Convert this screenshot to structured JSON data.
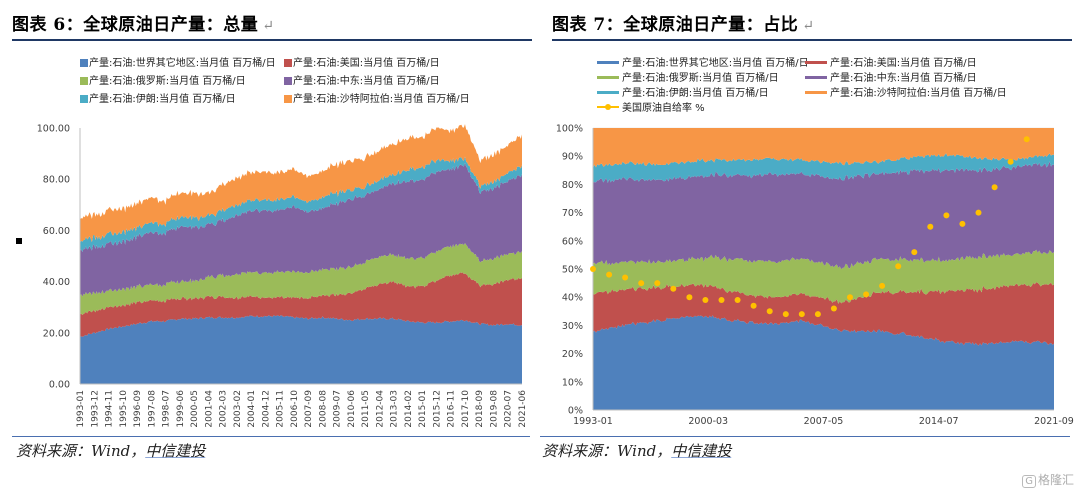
{
  "left": {
    "title": "图表 6：全球原油日产量：总量",
    "source_prefix": "资料来源：Wind，",
    "source_brand": "中信建投"
  },
  "right": {
    "title": "图表 7：全球原油日产量：占比",
    "source_prefix": "资料来源：Wind，",
    "source_brand": "中信建投"
  },
  "return_mark": "↵",
  "watermark": {
    "box": "G",
    "text": "格隆汇"
  },
  "colors": {
    "rest": "#4f81bd",
    "us": "#c0504d",
    "russia": "#9bbb59",
    "middle_east": "#8064a2",
    "iran": "#4bacc6",
    "saudi": "#f79646",
    "self_sufficiency": "#ffc000"
  },
  "chart_data": [
    {
      "type": "area",
      "stacked": true,
      "ylim": [
        0,
        100
      ],
      "yticks": [
        "0.00",
        "20.00",
        "40.00",
        "60.00",
        "80.00",
        "100.00"
      ],
      "xticks": [
        "1993-01",
        "1993-12",
        "1994-11",
        "1995-10",
        "1996-09",
        "1997-08",
        "1998-07",
        "1999-06",
        "2000-05",
        "2001-04",
        "2002-03",
        "2003-02",
        "2004-01",
        "2004-12",
        "2005-11",
        "2006-10",
        "2007-09",
        "2008-08",
        "2009-07",
        "2010-06",
        "2011-05",
        "2012-04",
        "2013-03",
        "2014-02",
        "2015-01",
        "2015-12",
        "2016-11",
        "2017-10",
        "2018-09",
        "2019-08",
        "2020-07",
        "2021-06"
      ],
      "x": [
        "1993",
        "1994",
        "1995",
        "1996",
        "1997",
        "1998",
        "1999",
        "2000",
        "2001",
        "2002",
        "2003",
        "2004",
        "2005",
        "2006",
        "2007",
        "2008",
        "2009",
        "2010",
        "2011",
        "2012",
        "2013",
        "2014",
        "2015",
        "2016",
        "2017",
        "2018",
        "2019",
        "2020-04",
        "2020-05",
        "2020-09",
        "2021",
        "2021-08"
      ],
      "series": [
        {
          "key": "rest",
          "name": "产量:石油:世界其它地区:当月值 百万桶/日",
          "values": [
            18.5,
            20.0,
            21.5,
            22.5,
            23.5,
            24.5,
            24.5,
            25.5,
            25.5,
            26.0,
            26.0,
            26.0,
            26.5,
            26.5,
            26.5,
            26.0,
            25.5,
            26.0,
            25.5,
            25.0,
            25.5,
            25.5,
            25.5,
            24.5,
            24.0,
            24.0,
            24.5,
            25.0,
            23.5,
            23.0,
            23.5,
            23.0
          ]
        },
        {
          "key": "us",
          "name": "产量:石油:美国:当月值 百万桶/日",
          "values": [
            9.0,
            8.5,
            8.5,
            8.3,
            8.3,
            8.1,
            8.0,
            8.0,
            8.0,
            8.0,
            8.0,
            7.7,
            7.6,
            7.3,
            7.5,
            7.6,
            8.0,
            8.5,
            9.3,
            10.5,
            12.0,
            13.5,
            14.5,
            13.5,
            14.0,
            16.5,
            18.0,
            18.5,
            15.0,
            16.0,
            17.5,
            18.5
          ]
        },
        {
          "key": "russia",
          "name": "产量:石油:俄罗斯:当月值 百万桶/日",
          "values": [
            7.5,
            6.9,
            6.5,
            6.4,
            6.2,
            6.2,
            6.3,
            6.6,
            7.0,
            7.6,
            8.4,
            9.2,
            9.5,
            9.7,
            10.0,
            10.0,
            10.0,
            10.1,
            10.3,
            10.4,
            10.5,
            10.6,
            10.7,
            11.0,
            11.0,
            11.3,
            11.4,
            11.5,
            9.6,
            10.0,
            10.2,
            10.5
          ]
        },
        {
          "key": "middle_east",
          "name": "产量:石油:中东:当月值 百万桶/日",
          "values": [
            17.5,
            18.0,
            18.2,
            18.5,
            19.5,
            20.5,
            20.0,
            21.5,
            21.0,
            20.5,
            21.5,
            23.0,
            24.0,
            24.5,
            24.0,
            25.5,
            23.5,
            24.0,
            25.5,
            26.5,
            26.0,
            26.5,
            28.0,
            30.0,
            30.5,
            31.0,
            30.0,
            31.0,
            27.0,
            27.5,
            28.5,
            30.0
          ]
        },
        {
          "key": "iran",
          "name": "产量:石油:伊朗:当月值 百万桶/日",
          "values": [
            3.7,
            3.7,
            3.7,
            3.7,
            3.7,
            3.7,
            3.6,
            3.8,
            3.8,
            3.5,
            3.9,
            4.1,
            4.2,
            4.2,
            4.0,
            4.1,
            4.0,
            4.2,
            4.2,
            3.7,
            3.5,
            3.6,
            3.5,
            4.5,
            4.9,
            4.7,
            3.2,
            2.4,
            2.3,
            2.5,
            3.0,
            3.5
          ]
        },
        {
          "key": "saudi",
          "name": "产量:石油:沙特阿拉伯:当月值 百万桶/日",
          "values": [
            9.0,
            9.0,
            9.2,
            9.3,
            9.5,
            9.7,
            9.0,
            9.5,
            9.5,
            8.8,
            10.0,
            10.5,
            11.0,
            10.8,
            10.5,
            10.8,
            10.0,
            10.2,
            11.0,
            11.5,
            11.3,
            11.5,
            12.0,
            12.3,
            12.0,
            12.5,
            11.8,
            13.0,
            10.0,
            10.5,
            11.0,
            12.0
          ]
        }
      ],
      "xlabel": "",
      "ylabel": "",
      "legend": "top",
      "grid": false
    },
    {
      "type": "area",
      "stacked": true,
      "percent": true,
      "ylim": [
        0,
        100
      ],
      "yticks": [
        "0%",
        "10%",
        "20%",
        "30%",
        "40%",
        "50%",
        "60%",
        "70%",
        "80%",
        "90%",
        "100%"
      ],
      "xticks": [
        "1993-01",
        "2000-03",
        "2007-05",
        "2014-07",
        "2021-09"
      ],
      "series": [
        {
          "key": "rest",
          "name": "产量:石油:世界其它地区:当月值 百万桶/日",
          "values": [
            27.5,
            30.5,
            32.0,
            33.5,
            32.0,
            30.5,
            31.5,
            28.0,
            28.0,
            26.5,
            24.0,
            23.5,
            24.5,
            23.5
          ]
        },
        {
          "key": "us",
          "name": "产量:石油:美国:当月值 百万桶/日",
          "values": [
            13.5,
            12.5,
            11.5,
            11.0,
            10.0,
            9.5,
            9.5,
            10.0,
            13.5,
            15.5,
            18.0,
            19.5,
            20.0,
            21.0
          ]
        },
        {
          "key": "russia",
          "name": "产量:石油:俄罗斯:当月值 百万桶/日",
          "values": [
            11.0,
            9.5,
            9.0,
            9.5,
            12.0,
            12.5,
            12.5,
            12.5,
            12.0,
            11.5,
            11.0,
            11.5,
            11.0,
            11.5
          ]
        },
        {
          "key": "middle_east",
          "name": "产量:石油:中东:当月值 百万桶/日",
          "values": [
            29.0,
            29.5,
            29.0,
            29.0,
            30.0,
            31.0,
            30.0,
            31.5,
            30.0,
            31.5,
            32.0,
            30.5,
            31.0,
            31.0
          ]
        },
        {
          "key": "iran",
          "name": "产量:石油:伊朗:当月值 百万桶/日",
          "values": [
            5.5,
            5.5,
            5.5,
            5.5,
            5.5,
            5.5,
            5.0,
            5.5,
            4.5,
            5.0,
            5.5,
            4.0,
            2.5,
            3.5
          ]
        },
        {
          "key": "saudi",
          "name": "产量:石油:沙特阿拉伯:当月值 百万桶/日",
          "values": [
            13.5,
            12.5,
            13.0,
            11.5,
            11.5,
            11.0,
            11.5,
            12.5,
            12.0,
            10.5,
            9.5,
            11.0,
            11.0,
            9.5
          ]
        }
      ],
      "self_sufficiency": {
        "name": "美国原油自给率 %",
        "x": [
          1993.0,
          1994.0,
          1995.0,
          1996.0,
          1997.0,
          1998.0,
          1999.0,
          2000.0,
          2001.0,
          2002.0,
          2003.0,
          2004.0,
          2005.0,
          2006.0,
          2007.0,
          2008.0,
          2009.0,
          2010.0,
          2011.0,
          2012.0,
          2013.0,
          2014.0,
          2015.0,
          2016.0,
          2017.0,
          2018.0,
          2019.0,
          2020.0,
          2021.0
        ],
        "values": [
          50,
          48,
          47,
          45,
          45,
          43,
          40,
          39,
          39,
          39,
          37,
          35,
          34,
          34,
          34,
          36,
          40,
          41,
          44,
          51,
          56,
          65,
          69,
          66,
          70,
          79,
          88,
          96,
          null
        ]
      },
      "xlabel": "",
      "ylabel": "",
      "legend": "top",
      "grid": true
    }
  ]
}
